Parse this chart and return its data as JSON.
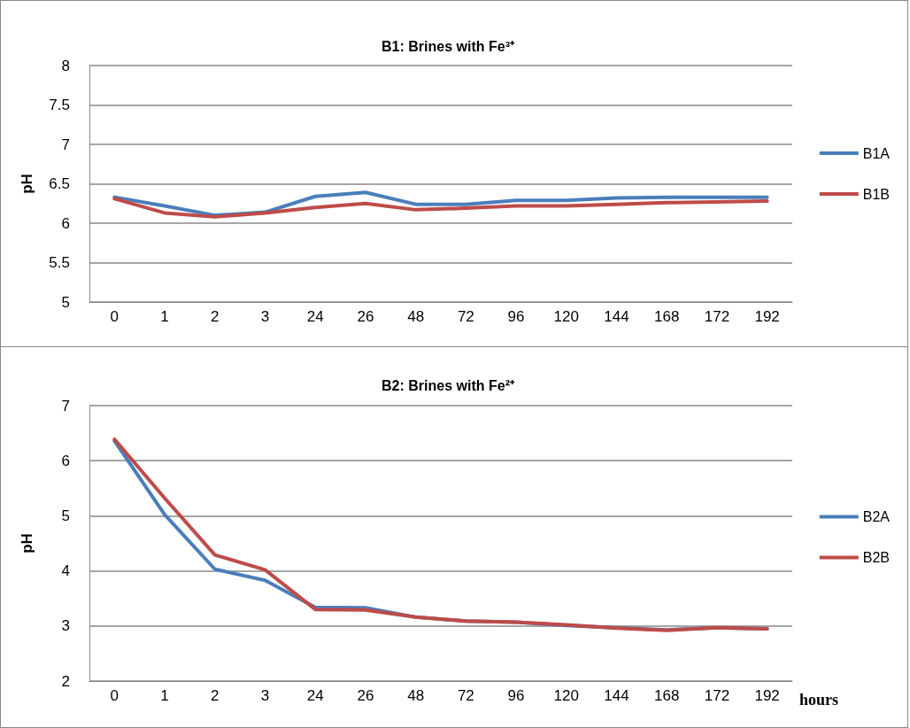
{
  "chart_data": [
    {
      "type": "line",
      "title": "B1: Brines with Fe³⁺",
      "ylabel": "pH",
      "categories": [
        "0",
        "1",
        "2",
        "3",
        "24",
        "26",
        "48",
        "72",
        "96",
        "120",
        "144",
        "168",
        "172",
        "192"
      ],
      "series": [
        {
          "name": "B1A",
          "color": "#4a7ebb",
          "values": [
            6.33,
            6.22,
            6.1,
            6.14,
            6.34,
            6.39,
            6.24,
            6.24,
            6.29,
            6.29,
            6.32,
            6.33,
            6.33,
            6.33
          ]
        },
        {
          "name": "B1B",
          "color": "#be4b48",
          "values": [
            6.31,
            6.13,
            6.08,
            6.13,
            6.2,
            6.25,
            6.17,
            6.19,
            6.22,
            6.22,
            6.24,
            6.26,
            6.27,
            6.28
          ]
        }
      ],
      "ylim": [
        5,
        8
      ],
      "yticks": [
        5,
        5.5,
        6,
        6.5,
        7,
        7.5,
        8
      ],
      "grid": "y",
      "legend": "right",
      "marker": "none",
      "line_style": "solid"
    },
    {
      "type": "line",
      "title": "B2: Brines with Fe²⁺",
      "ylabel": "pH",
      "xlabel": "hours",
      "categories": [
        "0",
        "1",
        "2",
        "3",
        "24",
        "26",
        "48",
        "72",
        "96",
        "120",
        "144",
        "168",
        "172",
        "192"
      ],
      "series": [
        {
          "name": "B2A",
          "color": "#4a7ebb",
          "values": [
            6.36,
            5.02,
            4.03,
            3.83,
            3.34,
            3.33,
            3.16,
            3.09,
            3.07,
            3.01,
            2.97,
            2.93,
            2.97,
            2.95
          ]
        },
        {
          "name": "B2B",
          "color": "#be4b48",
          "values": [
            6.39,
            5.32,
            4.29,
            4.02,
            3.3,
            3.29,
            3.16,
            3.09,
            3.07,
            3.02,
            2.96,
            2.92,
            2.97,
            2.95
          ]
        }
      ],
      "ylim": [
        2,
        7
      ],
      "yticks": [
        2,
        3,
        4,
        5,
        6,
        7
      ],
      "grid": "y",
      "legend": "right",
      "marker": "none",
      "line_style": "solid"
    }
  ]
}
